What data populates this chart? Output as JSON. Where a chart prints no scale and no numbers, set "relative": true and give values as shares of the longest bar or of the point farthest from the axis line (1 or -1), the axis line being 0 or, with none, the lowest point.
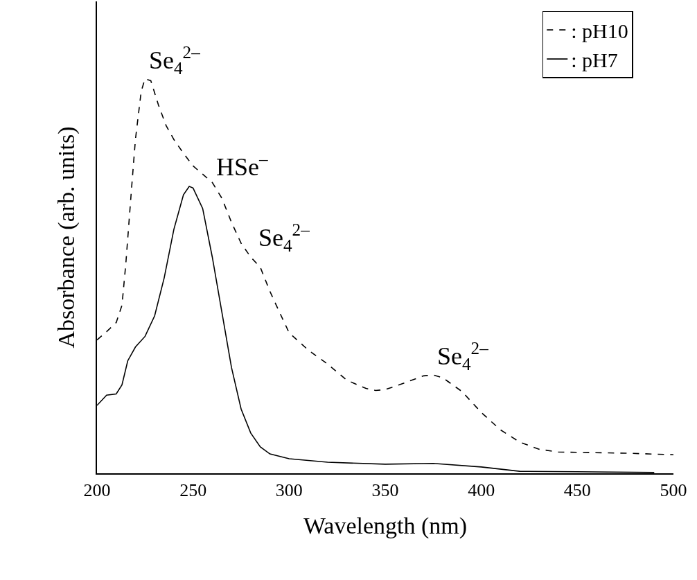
{
  "chart_data": {
    "type": "line",
    "relative": true,
    "xlabel": "Wavelength (nm)",
    "ylabel": "Absorbance (arb. units)",
    "xlim": [
      200,
      500
    ],
    "xticks": [
      200,
      250,
      300,
      350,
      400,
      450,
      500
    ],
    "legend": "top right",
    "marker": "none",
    "series": [
      {
        "name": ": pH10",
        "color": "#000000",
        "line_style": "dashed",
        "x": [
          200,
          205,
          210,
          213,
          215,
          218,
          220,
          223,
          225,
          228,
          232,
          236,
          240,
          245,
          250,
          255,
          260,
          265,
          270,
          275,
          280,
          285,
          290,
          295,
          300,
          310,
          320,
          330,
          340,
          345,
          350,
          360,
          370,
          375,
          380,
          390,
          400,
          410,
          420,
          430,
          440,
          450,
          475,
          500
        ],
        "values": [
          0.338,
          0.359,
          0.382,
          0.426,
          0.531,
          0.723,
          0.846,
          0.968,
          1.0,
          0.995,
          0.933,
          0.881,
          0.846,
          0.811,
          0.779,
          0.758,
          0.737,
          0.697,
          0.636,
          0.583,
          0.548,
          0.522,
          0.461,
          0.408,
          0.356,
          0.312,
          0.277,
          0.236,
          0.215,
          0.21,
          0.212,
          0.229,
          0.247,
          0.249,
          0.242,
          0.207,
          0.154,
          0.11,
          0.079,
          0.061,
          0.054,
          0.053,
          0.051,
          0.047
        ]
      },
      {
        "name": ": pH7",
        "color": "#000000",
        "line_style": "solid",
        "x": [
          200,
          205,
          210,
          213,
          216,
          220,
          225,
          230,
          235,
          240,
          245,
          248,
          250,
          255,
          260,
          265,
          270,
          275,
          280,
          285,
          290,
          300,
          320,
          350,
          375,
          400,
          420,
          450,
          490
        ],
        "values": [
          0.172,
          0.198,
          0.201,
          0.224,
          0.285,
          0.32,
          0.347,
          0.399,
          0.496,
          0.618,
          0.706,
          0.727,
          0.723,
          0.671,
          0.548,
          0.408,
          0.268,
          0.163,
          0.102,
          0.067,
          0.049,
          0.037,
          0.028,
          0.023,
          0.025,
          0.016,
          0.005,
          0.004,
          0.002
        ]
      }
    ],
    "annotations": [
      {
        "text": "Se$_{4}$$^{2–}$",
        "x": 225,
        "y": 1.0
      },
      {
        "text": "HSe$^{–}$",
        "x": 260,
        "y": 0.737
      },
      {
        "text": "Se$_{4}$$^{2–}$",
        "x": 282,
        "y": 0.55
      },
      {
        "text": "Se$_{4}$$^{2–}$",
        "x": 375,
        "y": 0.25
      }
    ]
  }
}
